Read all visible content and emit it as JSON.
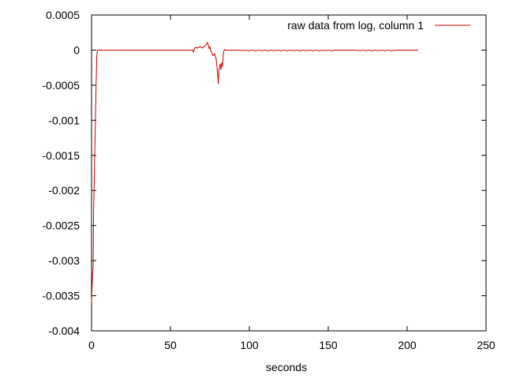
{
  "chart_data": {
    "type": "line",
    "title": "",
    "xlabel": "seconds",
    "ylabel": "",
    "xlim": [
      0,
      250
    ],
    "ylim": [
      -0.004,
      0.0005
    ],
    "x_ticks": [
      0,
      50,
      100,
      150,
      200,
      250
    ],
    "x_tick_labels": [
      "0",
      "50",
      "100",
      "150",
      "200",
      "250"
    ],
    "y_ticks": [
      0.0005,
      0,
      -0.0005,
      -0.001,
      -0.0015,
      -0.002,
      -0.0025,
      -0.003,
      -0.0035,
      -0.004
    ],
    "y_tick_labels": [
      "0.0005",
      "0",
      "-0.0005",
      "-0.001",
      "-0.0015",
      "-0.002",
      "-0.0025",
      "-0.003",
      "-0.0035",
      "-0.004"
    ],
    "grid": false,
    "legend_position": "top-right",
    "series": [
      {
        "name": "raw data from log, column 1",
        "color": "#cc0000",
        "x": [
          0,
          0.3,
          0.6,
          1,
          1.3,
          1.6,
          2,
          2.3,
          2.6,
          3,
          3.3,
          3.7,
          4,
          10,
          30,
          50,
          64,
          64.5,
          65,
          65.5,
          66,
          67,
          68,
          69,
          70,
          71,
          72,
          73,
          73.5,
          74,
          74.5,
          75,
          75.5,
          76,
          77,
          78,
          79,
          79.5,
          80,
          80.3,
          80.6,
          81,
          81.5,
          82,
          82.5,
          83,
          83.5,
          84,
          84.5,
          85,
          86,
          90,
          94,
          96,
          98,
          100,
          102,
          104,
          106,
          108,
          110,
          112,
          114,
          116,
          118,
          120,
          122,
          124,
          126,
          128,
          130,
          132,
          134,
          136,
          138,
          140,
          142,
          144,
          146,
          148,
          150,
          152,
          154,
          156,
          160,
          165,
          168,
          170,
          172,
          174,
          176,
          178,
          180,
          182,
          184,
          186,
          188,
          190,
          192,
          195,
          200,
          205,
          207
        ],
        "y": [
          -0.0036,
          -0.0034,
          -0.0032,
          -0.0031,
          -0.0023,
          -0.002,
          -0.0015,
          -0.0012,
          -0.0008,
          -0.0004,
          -0.0001,
          0,
          0,
          0,
          0,
          0,
          0,
          -3e-05,
          0,
          3e-05,
          4e-05,
          3e-05,
          4e-05,
          5e-05,
          3e-05,
          4e-05,
          6e-05,
          9e-05,
          0.00011,
          7e-05,
          2e-05,
          5e-05,
          -1e-05,
          -3e-05,
          -8e-05,
          -5e-05,
          -0.00013,
          -0.00025,
          -0.00036,
          -0.00048,
          -0.0003,
          -0.00025,
          -0.0002,
          -0.00028,
          -0.00018,
          -0.00023,
          -5e-05,
          0,
          1e-05,
          0,
          0,
          0,
          0,
          -1e-05,
          0,
          -1e-05,
          0,
          -1e-05,
          0,
          -1e-05,
          0,
          -1e-05,
          0,
          -1e-05,
          0,
          -1e-05,
          0,
          -1e-05,
          0,
          -1e-05,
          0,
          -1e-05,
          0,
          -1e-05,
          0,
          -1e-05,
          0,
          -1e-05,
          0,
          -1e-05,
          0,
          -1e-05,
          0,
          0,
          0,
          0,
          0,
          -1e-05,
          0,
          -1e-05,
          0,
          -1e-05,
          0,
          -1e-05,
          0,
          -1e-05,
          0,
          -1e-05,
          0,
          0,
          0,
          0,
          0
        ]
      }
    ]
  }
}
